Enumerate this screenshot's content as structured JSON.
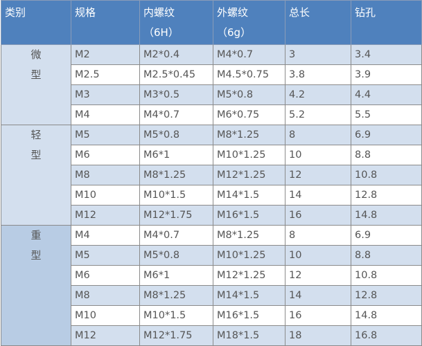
{
  "headers": [
    {
      "label": "类别",
      "sub": ""
    },
    {
      "label": "规格",
      "sub": ""
    },
    {
      "label": "内螺纹",
      "sub": "（6H）"
    },
    {
      "label": "外螺纹",
      "sub": "（6g）"
    },
    {
      "label": "总长",
      "sub": ""
    },
    {
      "label": "钻孔",
      "sub": ""
    }
  ],
  "groups": [
    {
      "category": [
        "微",
        "型"
      ],
      "rows": [
        [
          "M2",
          "M2*0.4",
          "M4*0.7",
          "3",
          "3.4"
        ],
        [
          "M2.5",
          "M2.5*0.45",
          "M4.5*0.75",
          "3.8",
          "3.9"
        ],
        [
          "M3",
          "M3*0.5",
          "M5*0.8",
          "4.2",
          "4.4"
        ],
        [
          "M4",
          "M4*0.7",
          "M6*0.75",
          "5.2",
          "5.5"
        ]
      ]
    },
    {
      "category": [
        "轻",
        "型"
      ],
      "rows": [
        [
          "M5",
          "M5*0.8",
          "M8*1.25",
          "8",
          "6.9"
        ],
        [
          "M6",
          "M6*1",
          "M10*1.25",
          "10",
          "8.8"
        ],
        [
          "M8",
          "M8*1.25",
          "M12*1.25",
          "12",
          "10.8"
        ],
        [
          "M10",
          "M10*1.5",
          "M14*1.5",
          "14",
          "12.8"
        ],
        [
          "M12",
          "M12*1.75",
          "M16*1.5",
          "16",
          "14.8"
        ]
      ]
    },
    {
      "category": [
        "重",
        "型"
      ],
      "rows": [
        [
          "M4",
          "M4*0.7",
          "M8*1.25",
          "8",
          "6.9"
        ],
        [
          "M5",
          "M5*0.8",
          "M10*1.25",
          "10",
          "8.8"
        ],
        [
          "M6",
          "M6*1",
          "M12*1.25",
          "12",
          "10.8"
        ],
        [
          "M8",
          "M8*1.25",
          "M14*1.5",
          "14",
          "12.8"
        ],
        [
          "M10",
          "M10*1.5",
          "M16*1.5",
          "16",
          "14.8"
        ],
        [
          "M12",
          "M12*1.75",
          "M18*1.5",
          "18",
          "16.8"
        ]
      ]
    }
  ],
  "colors": {
    "header": "#4f81bd",
    "row_band": "#d3dfee",
    "heavy_category": "#b8cce4"
  }
}
